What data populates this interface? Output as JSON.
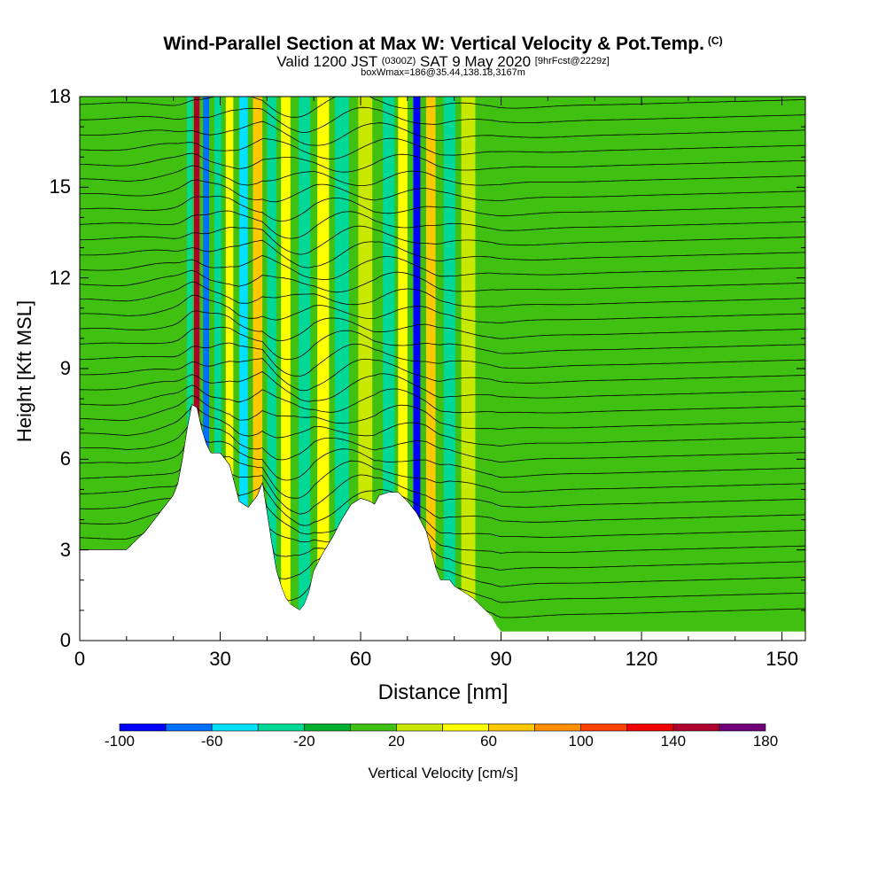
{
  "header": {
    "title": "Wind-Parallel Section at Max W: Vertical Velocity & Pot.Temp.",
    "copyright": "(C)",
    "valid_prefix": "Valid 1200 JST",
    "valid_utc": "(0300Z)",
    "valid_date": "SAT 9 May 2020",
    "forecast": "[9hrFcst@2229z]",
    "boxwmax": "boxWmax=186@35.44,138.18,3167m"
  },
  "chart_data": {
    "type": "heatmap",
    "xlabel": "Distance [nm]",
    "ylabel": "Height [Kft MSL]",
    "xlim": [
      0,
      155
    ],
    "ylim": [
      0,
      18
    ],
    "x_ticks": [
      0,
      30,
      60,
      90,
      120,
      150
    ],
    "y_ticks": [
      0,
      3,
      6,
      9,
      12,
      15,
      18
    ],
    "grid": false,
    "colorbar": {
      "label": "Vertical Velocity [cm/s]",
      "bounds": [
        -100,
        -80,
        -60,
        -40,
        -20,
        0,
        20,
        40,
        60,
        80,
        100,
        120,
        140,
        160,
        180
      ],
      "tick_labels": [
        -100,
        -60,
        -20,
        20,
        60,
        100,
        140,
        180
      ],
      "colors": [
        "#0000ff",
        "#0070ff",
        "#00e0ff",
        "#00d898",
        "#00b030",
        "#40c010",
        "#c8e800",
        "#ffff00",
        "#ffc800",
        "#ff9000",
        "#ff4000",
        "#f00000",
        "#b00030",
        "#70007a"
      ]
    },
    "background_w": 0,
    "terrain": [
      [
        0,
        3
      ],
      [
        10,
        3
      ],
      [
        12,
        3.3
      ],
      [
        14,
        3.6
      ],
      [
        16,
        4
      ],
      [
        18,
        4.4
      ],
      [
        20,
        4.8
      ],
      [
        21,
        5.2
      ],
      [
        22,
        6
      ],
      [
        23,
        7
      ],
      [
        24,
        7.8
      ],
      [
        25,
        7.7
      ],
      [
        26,
        7
      ],
      [
        27,
        6.5
      ],
      [
        28,
        6.2
      ],
      [
        30,
        6.2
      ],
      [
        32,
        5.8
      ],
      [
        33,
        5.2
      ],
      [
        34,
        4.6
      ],
      [
        36,
        4.4
      ],
      [
        38,
        4.8
      ],
      [
        39,
        5.2
      ],
      [
        40,
        4.2
      ],
      [
        41,
        3.2
      ],
      [
        42,
        2.3
      ],
      [
        43,
        1.8
      ],
      [
        44,
        1.4
      ],
      [
        45,
        1.2
      ],
      [
        47,
        1.0
      ],
      [
        48,
        1.2
      ],
      [
        49,
        1.6
      ],
      [
        50,
        2.3
      ],
      [
        52,
        2.9
      ],
      [
        54,
        3.4
      ],
      [
        56,
        4.0
      ],
      [
        58,
        4.5
      ],
      [
        60,
        4.7
      ],
      [
        62,
        4.6
      ],
      [
        63,
        4.5
      ],
      [
        64,
        4.8
      ],
      [
        66,
        4.9
      ],
      [
        68,
        4.9
      ],
      [
        70,
        4.6
      ],
      [
        72,
        4.2
      ],
      [
        74,
        3.6
      ],
      [
        75,
        3.0
      ],
      [
        76,
        2.4
      ],
      [
        77,
        2.0
      ],
      [
        79,
        2.0
      ],
      [
        80,
        1.8
      ],
      [
        82,
        1.6
      ],
      [
        84,
        1.4
      ],
      [
        86,
        1.1
      ],
      [
        88,
        0.8
      ],
      [
        89,
        0.5
      ],
      [
        90,
        0.3
      ],
      [
        155,
        0.3
      ]
    ],
    "features": [
      {
        "x": 25,
        "width": 1.2,
        "w": 140
      },
      {
        "x": 23.5,
        "width": 1.2,
        "w": -40
      },
      {
        "x": 27,
        "width": 1.3,
        "w": -70
      },
      {
        "x": 29.5,
        "width": 1.5,
        "w": -40
      },
      {
        "x": 32,
        "width": 1.6,
        "w": 40
      },
      {
        "x": 35,
        "width": 1.8,
        "w": -60
      },
      {
        "x": 38,
        "width": 2.0,
        "w": 70
      },
      {
        "x": 41,
        "width": 2.0,
        "w": -30
      },
      {
        "x": 44,
        "width": 2.0,
        "w": 40
      },
      {
        "x": 48,
        "width": 2.5,
        "w": -25
      },
      {
        "x": 52,
        "width": 2.5,
        "w": 40
      },
      {
        "x": 56,
        "width": 3.0,
        "w": -25
      },
      {
        "x": 61,
        "width": 3.0,
        "w": 30
      },
      {
        "x": 66,
        "width": 2.5,
        "w": -25
      },
      {
        "x": 69,
        "width": 2.0,
        "w": 45
      },
      {
        "x": 72,
        "width": 1.5,
        "w": -90
      },
      {
        "x": 75,
        "width": 2.0,
        "w": 60
      },
      {
        "x": 79,
        "width": 2.5,
        "w": -30
      },
      {
        "x": 83,
        "width": 3.0,
        "w": 25
      }
    ],
    "isentropes": {
      "label": "Pot.Temp. contours",
      "count": 34,
      "base_height_kft": 1.2,
      "spacing_kft": 0.5
    }
  }
}
